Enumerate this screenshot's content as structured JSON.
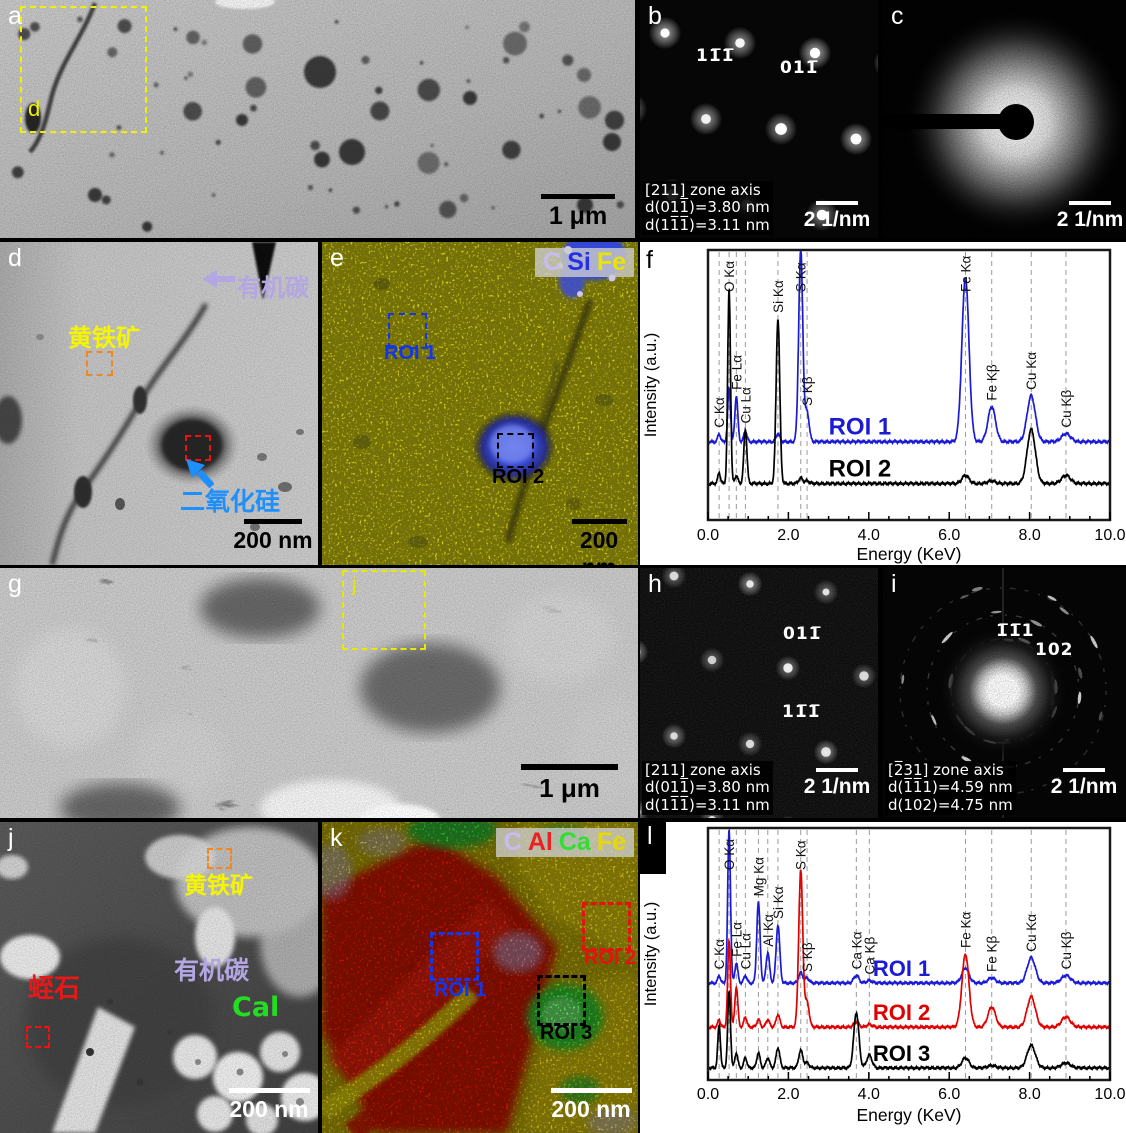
{
  "panels": {
    "a": {
      "label": "a",
      "inset_box_label": "d",
      "scale_bar": "1 μm"
    },
    "b": {
      "label": "b",
      "spot_labels": [
        {
          "text": "11̅1̅"
        },
        {
          "text": "011̅"
        }
      ],
      "info_lines": [
        "[211] zone axis",
        "d(011̅)=3.80 nm",
        "d(11̅1̅)=3.11 nm"
      ],
      "scale_bar": "2 1/nm"
    },
    "c": {
      "label": "c",
      "scale_bar": "2 1/nm"
    },
    "d": {
      "label": "d",
      "annotations": {
        "organic_carbon": {
          "text": "有机碳",
          "color": "#b3a6e3"
        },
        "pyrite": {
          "text": "黄铁矿",
          "color": "#f5f500"
        },
        "silica": {
          "text": "二氧化硅",
          "color": "#1e8fff"
        }
      },
      "scale_bar": "200 nm"
    },
    "e": {
      "label": "e",
      "legend": [
        {
          "text": "C",
          "color": "#c6bcf0"
        },
        {
          "text": "Si",
          "color": "#2430e8"
        },
        {
          "text": "Fe",
          "color": "#e9e400"
        }
      ],
      "rois": [
        {
          "text": "ROI 1",
          "color": "#1535e8"
        },
        {
          "text": "ROI 2",
          "color": "#000000"
        }
      ],
      "scale_bar": "200 nm"
    },
    "f": {
      "label": "f"
    },
    "g": {
      "label": "g",
      "inset_box_label": "j",
      "scale_bar": "1 μm"
    },
    "h": {
      "label": "h",
      "spot_labels": [
        {
          "text": "011̅"
        },
        {
          "text": "11̅1̅"
        }
      ],
      "info_lines": [
        "[211] zone axis",
        "d(011̅)=3.80 nm",
        "d(11̅1̅)=3.11 nm"
      ],
      "scale_bar": "2 1/nm"
    },
    "i": {
      "label": "i",
      "spot_labels": [
        {
          "text": "1̅1̅1"
        },
        {
          "text": "102"
        }
      ],
      "info_lines": [
        "[2̅31] zone axis",
        "d(1̅1̅1)=4.59 nm",
        "d(102)=4.75 nm"
      ],
      "scale_bar": "2 1/nm"
    },
    "j": {
      "label": "j",
      "annotations": {
        "pyrite": {
          "text": "黄铁矿",
          "color": "#f5f500"
        },
        "vermiculite": {
          "text": "蛭石",
          "color": "#e81818"
        },
        "organic_carbon": {
          "text": "有机碳",
          "color": "#b3a6e3"
        },
        "calcite": {
          "text": "Cal",
          "color": "#22dd22"
        }
      },
      "scale_bar": "200 nm"
    },
    "k": {
      "label": "k",
      "legend": [
        {
          "text": "C",
          "color": "#c6bcf0"
        },
        {
          "text": "Al",
          "color": "#e82222"
        },
        {
          "text": "Ca",
          "color": "#33dd33"
        },
        {
          "text": "Fe",
          "color": "#e9d800"
        }
      ],
      "rois": [
        {
          "text": "ROI 1",
          "color": "#1535e8"
        },
        {
          "text": "ROI 2",
          "color": "#e81111"
        },
        {
          "text": "ROI 3",
          "color": "#000000"
        }
      ],
      "scale_bar": "200 nm"
    },
    "l": {
      "label": "l"
    }
  },
  "chart_data": [
    {
      "type": "line",
      "panel": "f",
      "title": "",
      "xlabel": "Energy (KeV)",
      "ylabel": "Intensity (a.u.)",
      "xlim": [
        0,
        10
      ],
      "ylim": [
        0,
        100
      ],
      "grid": "dashed-vertical-at-peaks",
      "legend_position": "inline-right-of-curves",
      "xticks": [
        {
          "label": "0.0",
          "value": 0
        },
        {
          "label": "2.0",
          "value": 2
        },
        {
          "label": "4.0",
          "value": 4
        },
        {
          "label": "6.0",
          "value": 6
        },
        {
          "label": "8.0",
          "value": 8
        },
        {
          "label": "10.0",
          "value": 10
        }
      ],
      "peak_labels": [
        {
          "text": "C Kα",
          "x": 0.277
        },
        {
          "text": "O Kα",
          "x": 0.525
        },
        {
          "text": "Fe Lα",
          "x": 0.705
        },
        {
          "text": "Cu Lα",
          "x": 0.93
        },
        {
          "text": "Si Kα",
          "x": 1.74
        },
        {
          "text": "S Kα",
          "x": 2.307
        },
        {
          "text": "S Kβ",
          "x": 2.464
        },
        {
          "text": "Fe Kα",
          "x": 6.404
        },
        {
          "text": "Fe Kβ",
          "x": 7.058
        },
        {
          "text": "Cu Kα",
          "x": 8.041
        },
        {
          "text": "Cu Kβ",
          "x": 8.905
        }
      ],
      "series": [
        {
          "name": "ROI 1",
          "color": "#1b1bd6",
          "baseline": 29,
          "label_x": 3.0,
          "peaks": [
            [
              0.277,
              3
            ],
            [
              0.525,
              20
            ],
            [
              0.705,
              17
            ],
            [
              0.93,
              4
            ],
            [
              1.74,
              3
            ],
            [
              2.307,
              71
            ],
            [
              2.464,
              11
            ],
            [
              6.404,
              61
            ],
            [
              7.058,
              13
            ],
            [
              8.041,
              17
            ],
            [
              8.905,
              3
            ]
          ]
        },
        {
          "name": "ROI 2",
          "color": "#000000",
          "baseline": 13.5,
          "label_x": 3.0,
          "peaks": [
            [
              0.277,
              4
            ],
            [
              0.525,
              72
            ],
            [
              0.705,
              3
            ],
            [
              0.93,
              20
            ],
            [
              1.74,
              61
            ],
            [
              2.307,
              2
            ],
            [
              2.464,
              1
            ],
            [
              6.404,
              3
            ],
            [
              7.058,
              1
            ],
            [
              8.041,
              20
            ],
            [
              8.905,
              3
            ]
          ]
        }
      ]
    },
    {
      "type": "line",
      "panel": "l",
      "title": "",
      "xlabel": "Energy (KeV)",
      "ylabel": "Intensity (a.u.)",
      "xlim": [
        0,
        10
      ],
      "ylim": [
        0,
        100
      ],
      "grid": "dashed-vertical-at-peaks",
      "legend_position": "inline-right-of-curves",
      "xticks": [
        {
          "label": "0.0",
          "value": 0
        },
        {
          "label": "2.0",
          "value": 2
        },
        {
          "label": "4.0",
          "value": 4
        },
        {
          "label": "6.0",
          "value": 6
        },
        {
          "label": "8.0",
          "value": 8
        },
        {
          "label": "10.0",
          "value": 10
        }
      ],
      "peak_labels": [
        {
          "text": "C Kα",
          "x": 0.277
        },
        {
          "text": "O Kα",
          "x": 0.525
        },
        {
          "text": "Fe Lα",
          "x": 0.705
        },
        {
          "text": "Cu Lα",
          "x": 0.93
        },
        {
          "text": "Mg Kα",
          "x": 1.254
        },
        {
          "text": "Al Kα",
          "x": 1.487
        },
        {
          "text": "Si Kα",
          "x": 1.74
        },
        {
          "text": "S Kα",
          "x": 2.307
        },
        {
          "text": "S Kβ",
          "x": 2.464
        },
        {
          "text": "Ca Kα",
          "x": 3.69
        },
        {
          "text": "Ca Kβ",
          "x": 4.013
        },
        {
          "text": "Fe Kα",
          "x": 6.404
        },
        {
          "text": "Fe Kβ",
          "x": 7.058
        },
        {
          "text": "Cu Kα",
          "x": 8.041
        },
        {
          "text": "Cu Kβ",
          "x": 8.905
        }
      ],
      "series": [
        {
          "name": "ROI 1",
          "color": "#1b1bd6",
          "baseline": 38.5,
          "label_x": 4.1,
          "peaks": [
            [
              0.277,
              3
            ],
            [
              0.525,
              61
            ],
            [
              0.705,
              8
            ],
            [
              0.93,
              3
            ],
            [
              1.254,
              32
            ],
            [
              1.487,
              12
            ],
            [
              1.74,
              23
            ],
            [
              2.307,
              4
            ],
            [
              2.464,
              2
            ],
            [
              3.69,
              3
            ],
            [
              4.013,
              1
            ],
            [
              6.404,
              6
            ],
            [
              7.058,
              2
            ],
            [
              8.041,
              10
            ],
            [
              8.905,
              3
            ]
          ]
        },
        {
          "name": "ROI 2",
          "color": "#e00000",
          "baseline": 21,
          "label_x": 4.1,
          "peaks": [
            [
              0.277,
              3
            ],
            [
              0.525,
              34
            ],
            [
              0.705,
              16
            ],
            [
              0.93,
              4
            ],
            [
              1.254,
              3
            ],
            [
              1.487,
              3
            ],
            [
              1.74,
              5
            ],
            [
              2.307,
              62
            ],
            [
              2.464,
              10
            ],
            [
              3.69,
              2
            ],
            [
              4.013,
              1
            ],
            [
              6.404,
              29
            ],
            [
              7.058,
              8
            ],
            [
              8.041,
              12
            ],
            [
              8.905,
              4
            ]
          ]
        },
        {
          "name": "ROI 3",
          "color": "#000000",
          "baseline": 4.8,
          "label_x": 4.1,
          "peaks": [
            [
              0.277,
              17
            ],
            [
              0.525,
              30
            ],
            [
              0.705,
              6
            ],
            [
              0.93,
              4
            ],
            [
              1.254,
              6
            ],
            [
              1.487,
              4
            ],
            [
              1.74,
              8
            ],
            [
              2.307,
              7
            ],
            [
              2.464,
              2
            ],
            [
              3.69,
              22
            ],
            [
              4.013,
              5
            ],
            [
              6.404,
              4
            ],
            [
              7.058,
              1
            ],
            [
              8.041,
              9
            ],
            [
              8.905,
              2
            ]
          ]
        }
      ]
    }
  ]
}
